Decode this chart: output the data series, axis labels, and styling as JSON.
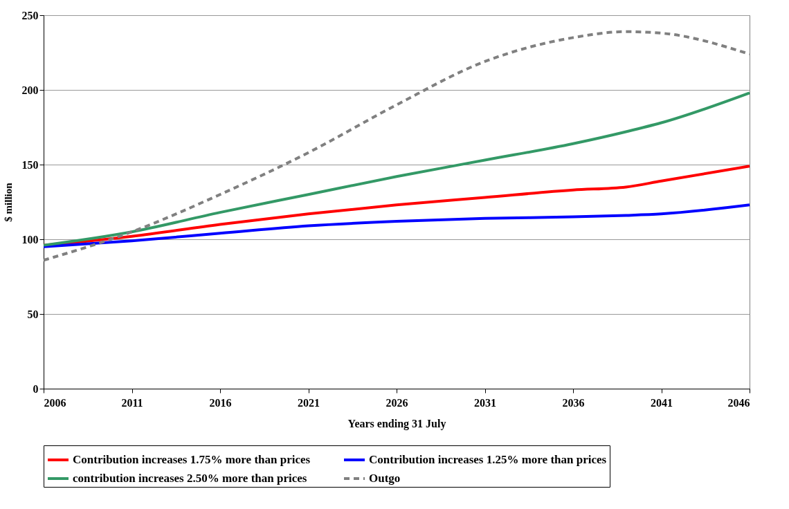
{
  "chart_data": {
    "type": "line",
    "xlabel": "Years ending 31 July",
    "ylabel": "$ million",
    "x": [
      2006,
      2011,
      2016,
      2021,
      2026,
      2031,
      2036,
      2039,
      2041,
      2046
    ],
    "series": [
      {
        "name": "Contribution increases 1.75% more than prices",
        "color": "#ff0000",
        "line_style": "solid",
        "values": [
          96,
          102,
          110,
          117,
          123,
          128,
          133,
          135,
          139,
          149
        ]
      },
      {
        "name": "Contribution increases 1.25% more than prices",
        "color": "#0000ff",
        "line_style": "solid",
        "values": [
          95,
          99,
          104,
          109,
          112,
          114,
          115,
          116,
          117,
          123
        ]
      },
      {
        "name": "contribution increases 2.50% more than prices",
        "color": "#339966",
        "line_style": "solid",
        "values": [
          96,
          105,
          118,
          130,
          142,
          153,
          164,
          172,
          178,
          198
        ]
      },
      {
        "name": "Outgo",
        "color": "#808080",
        "line_style": "dashed",
        "values": [
          86,
          105,
          130,
          158,
          190,
          219,
          235,
          239,
          238,
          224
        ]
      }
    ],
    "xlim": [
      2006,
      2046
    ],
    "xticks": [
      2006,
      2011,
      2016,
      2021,
      2026,
      2031,
      2036,
      2041,
      2046
    ],
    "ylim": [
      0,
      250
    ],
    "yticks": [
      0,
      50,
      100,
      150,
      200,
      250
    ],
    "grid": "y",
    "legend": "bottom",
    "marker": "none"
  }
}
